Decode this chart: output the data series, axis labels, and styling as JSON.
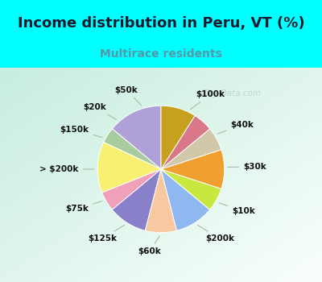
{
  "title": "Income distribution in Peru, VT (%)",
  "subtitle": "Multirace residents",
  "background_top": "#00FFFF",
  "background_chart_tl": "#c8e8d8",
  "background_chart_br": "#e8f8f0",
  "labels": [
    "$100k",
    "$40k",
    "$30k",
    "$10k",
    "$200k",
    "$60k",
    "$125k",
    "$75k",
    "> $200k",
    "$150k",
    "$20k",
    "$50k"
  ],
  "values": [
    14,
    4,
    13,
    5,
    10,
    8,
    10,
    6,
    10,
    6,
    5,
    9
  ],
  "colors": [
    "#b0a0d8",
    "#a8cca0",
    "#f8f070",
    "#f0a0b8",
    "#8880c8",
    "#f8c8a0",
    "#90b8f0",
    "#c8e840",
    "#f0a030",
    "#d0c8a8",
    "#d87888",
    "#c8a020"
  ],
  "watermark": "City-Data.com",
  "title_fontsize": 13,
  "subtitle_fontsize": 10,
  "label_fontsize": 7.5
}
